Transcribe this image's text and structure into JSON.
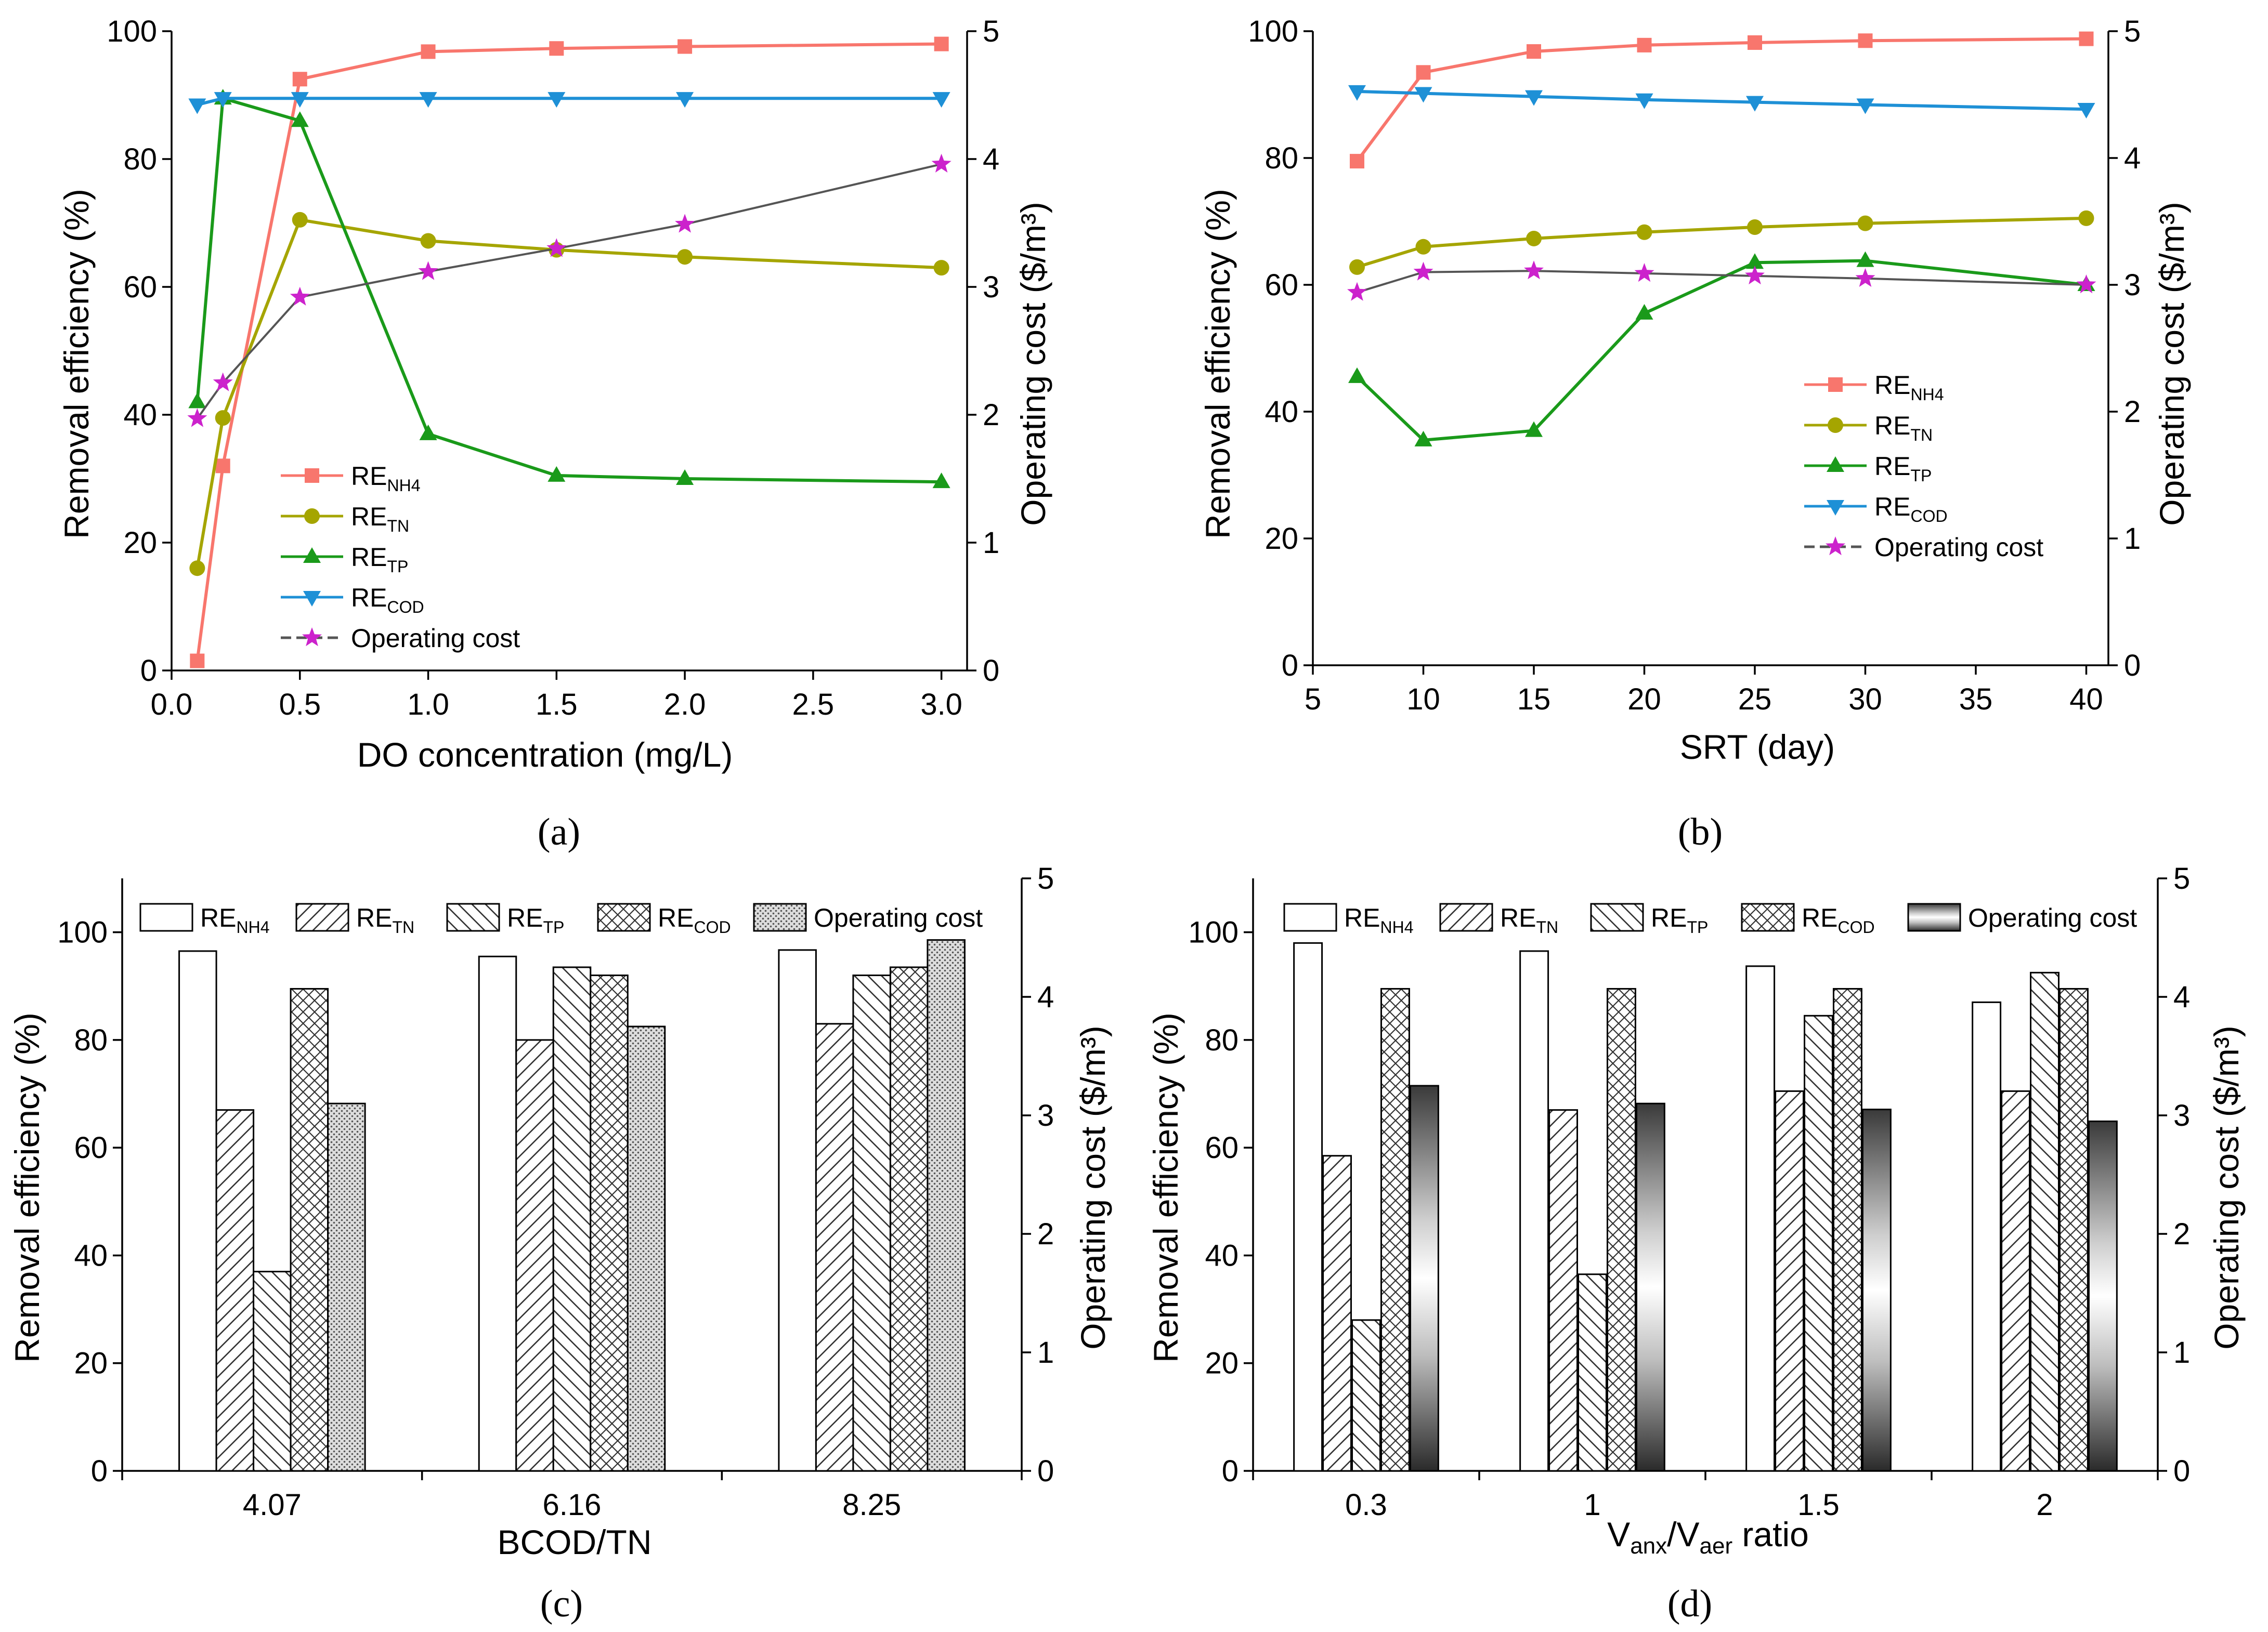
{
  "colors": {
    "nh4": "#f8766d",
    "tn": "#a5a500",
    "tp": "#1a9a1a",
    "cod": "#1e90d6",
    "cost_line": "#555555",
    "cost_marker": "#cc22cc"
  },
  "chart_data": [
    {
      "id": "a",
      "type": "line",
      "panel_label": "(a)",
      "xlabel": "DO concentration (mg/L)",
      "ylabel": "Removal efficiency (%)",
      "y2label": "Operating cost ($/m³)",
      "xlim": [
        0,
        3.1
      ],
      "ylim": [
        0,
        100
      ],
      "y2lim": [
        0,
        5
      ],
      "xticks": [
        "0.0",
        "0.5",
        "1.0",
        "1.5",
        "2.0",
        "2.5",
        "3.0"
      ],
      "yticks": [
        "0",
        "20",
        "40",
        "60",
        "80",
        "100"
      ],
      "y2ticks": [
        "0",
        "1",
        "2",
        "3",
        "4",
        "5"
      ],
      "x": [
        0.1,
        0.2,
        0.5,
        1.0,
        1.5,
        2.0,
        3.0
      ],
      "series": [
        {
          "key": "nh4",
          "legend_main": "RE",
          "legend_sub": "NH4",
          "marker": "square",
          "axis": "left",
          "values": [
            1.5,
            32,
            92.5,
            96.8,
            97.3,
            97.6,
            98
          ]
        },
        {
          "key": "tn",
          "legend_main": "RE",
          "legend_sub": "TN",
          "marker": "circle",
          "axis": "left",
          "values": [
            16,
            39.5,
            70.5,
            67.2,
            65.8,
            64.7,
            63
          ]
        },
        {
          "key": "tp",
          "legend_main": "RE",
          "legend_sub": "TP",
          "marker": "triangle-up",
          "axis": "left",
          "values": [
            42,
            89.5,
            86,
            37,
            30.5,
            30,
            29.5
          ]
        },
        {
          "key": "cod",
          "legend_main": "RE",
          "legend_sub": "COD",
          "marker": "triangle-down",
          "axis": "left",
          "values": [
            88.5,
            89.5,
            89.5,
            89.5,
            89.5,
            89.5,
            89.5
          ]
        },
        {
          "key": "cost",
          "legend_main": "Operating cost",
          "legend_sub": "",
          "marker": "star",
          "axis": "right",
          "values": [
            1.97,
            2.25,
            2.92,
            3.12,
            3.3,
            3.49,
            3.96
          ]
        }
      ]
    },
    {
      "id": "b",
      "type": "line",
      "panel_label": "(b)",
      "xlabel": "SRT (day)",
      "ylabel": "Removal efficiency (%)",
      "y2label": "Operating cost ($/m³)",
      "xlim": [
        5,
        41
      ],
      "ylim": [
        0,
        100
      ],
      "y2lim": [
        0,
        5
      ],
      "xticks": [
        "5",
        "10",
        "15",
        "20",
        "25",
        "30",
        "35",
        "40"
      ],
      "yticks": [
        "0",
        "20",
        "40",
        "60",
        "80",
        "100"
      ],
      "y2ticks": [
        "0",
        "1",
        "2",
        "3",
        "4",
        "5"
      ],
      "x": [
        7,
        10,
        15,
        20,
        25,
        30,
        40
      ],
      "series": [
        {
          "key": "nh4",
          "legend_main": "RE",
          "legend_sub": "NH4",
          "marker": "square",
          "axis": "left",
          "values": [
            79.5,
            93.5,
            96.8,
            97.8,
            98.2,
            98.5,
            98.8
          ]
        },
        {
          "key": "tn",
          "legend_main": "RE",
          "legend_sub": "TN",
          "marker": "circle",
          "axis": "left",
          "values": [
            62.8,
            66,
            67.3,
            68.3,
            69.1,
            69.7,
            70.5
          ]
        },
        {
          "key": "tp",
          "legend_main": "RE",
          "legend_sub": "TP",
          "marker": "triangle-up",
          "axis": "left",
          "values": [
            45.5,
            35.5,
            37,
            55.5,
            63.5,
            63.8,
            60
          ]
        },
        {
          "key": "cod",
          "legend_main": "RE",
          "legend_sub": "COD",
          "marker": "triangle-down",
          "axis": "left",
          "values": [
            90.5,
            90.2,
            89.7,
            89.2,
            88.8,
            88.4,
            87.7
          ]
        },
        {
          "key": "cost",
          "legend_main": "Operating cost",
          "legend_sub": "",
          "marker": "star",
          "axis": "right",
          "values": [
            2.94,
            3.1,
            3.11,
            3.09,
            3.07,
            3.05,
            3.0
          ]
        }
      ]
    },
    {
      "id": "c",
      "type": "bar",
      "panel_label": "(c)",
      "xlabel": "BCOD/TN",
      "ylabel": "Removal efficiency (%)",
      "y2label": "Operating cost ($/m³)",
      "ylim": [
        0,
        110
      ],
      "y2lim": [
        0,
        5
      ],
      "yticks": [
        "0",
        "20",
        "40",
        "60",
        "80",
        "100"
      ],
      "y2ticks": [
        "0",
        "1",
        "2",
        "3",
        "4",
        "5"
      ],
      "categories": [
        "4.07",
        "6.16",
        "8.25"
      ],
      "series": [
        {
          "key": "nh4",
          "legend_main": "RE",
          "legend_sub": "NH4",
          "pattern": "blank",
          "axis": "left",
          "values": [
            96.5,
            95.5,
            96.7
          ]
        },
        {
          "key": "tn",
          "legend_main": "RE",
          "legend_sub": "TN",
          "pattern": "hatch-fwd",
          "axis": "left",
          "values": [
            67,
            80,
            83
          ]
        },
        {
          "key": "tp",
          "legend_main": "RE",
          "legend_sub": "TP",
          "pattern": "hatch-back",
          "axis": "left",
          "values": [
            37,
            93.5,
            92
          ]
        },
        {
          "key": "cod",
          "legend_main": "RE",
          "legend_sub": "COD",
          "pattern": "cross",
          "axis": "left",
          "values": [
            89.5,
            92,
            93.5
          ]
        },
        {
          "key": "cost",
          "legend_main": "Operating cost",
          "legend_sub": "",
          "pattern": "dots",
          "axis": "right",
          "values": [
            3.1,
            3.75,
            4.48
          ]
        }
      ]
    },
    {
      "id": "d",
      "type": "bar",
      "panel_label": "(d)",
      "xlabel_main": "V",
      "xlabel_sub1": "anx",
      "xlabel_mid": "/V",
      "xlabel_sub2": "aer",
      "xlabel_end": " ratio",
      "ylabel": "Removal efficiency (%)",
      "y2label": "Operating cost ($/m³)",
      "ylim": [
        0,
        110
      ],
      "y2lim": [
        0,
        5
      ],
      "yticks": [
        "0",
        "20",
        "40",
        "60",
        "80",
        "100"
      ],
      "y2ticks": [
        "0",
        "1",
        "2",
        "3",
        "4",
        "5"
      ],
      "categories": [
        "0.3",
        "1",
        "1.5",
        "2"
      ],
      "series": [
        {
          "key": "nh4",
          "legend_main": "RE",
          "legend_sub": "NH4",
          "pattern": "blank",
          "axis": "left",
          "values": [
            98,
            96.5,
            93.7,
            87
          ]
        },
        {
          "key": "tn",
          "legend_main": "RE",
          "legend_sub": "TN",
          "pattern": "hatch-fwd",
          "axis": "left",
          "values": [
            58.5,
            67,
            70.5,
            70.5
          ]
        },
        {
          "key": "tp",
          "legend_main": "RE",
          "legend_sub": "TP",
          "pattern": "hatch-back",
          "axis": "left",
          "values": [
            28,
            36.5,
            84.5,
            92.5
          ]
        },
        {
          "key": "cod",
          "legend_main": "RE",
          "legend_sub": "COD",
          "pattern": "cross",
          "axis": "left",
          "values": [
            89.5,
            89.5,
            89.5,
            89.5
          ]
        },
        {
          "key": "cost",
          "legend_main": "Operating cost",
          "legend_sub": "",
          "pattern": "gradient",
          "axis": "right",
          "values": [
            3.25,
            3.1,
            3.05,
            2.95
          ]
        }
      ]
    }
  ]
}
